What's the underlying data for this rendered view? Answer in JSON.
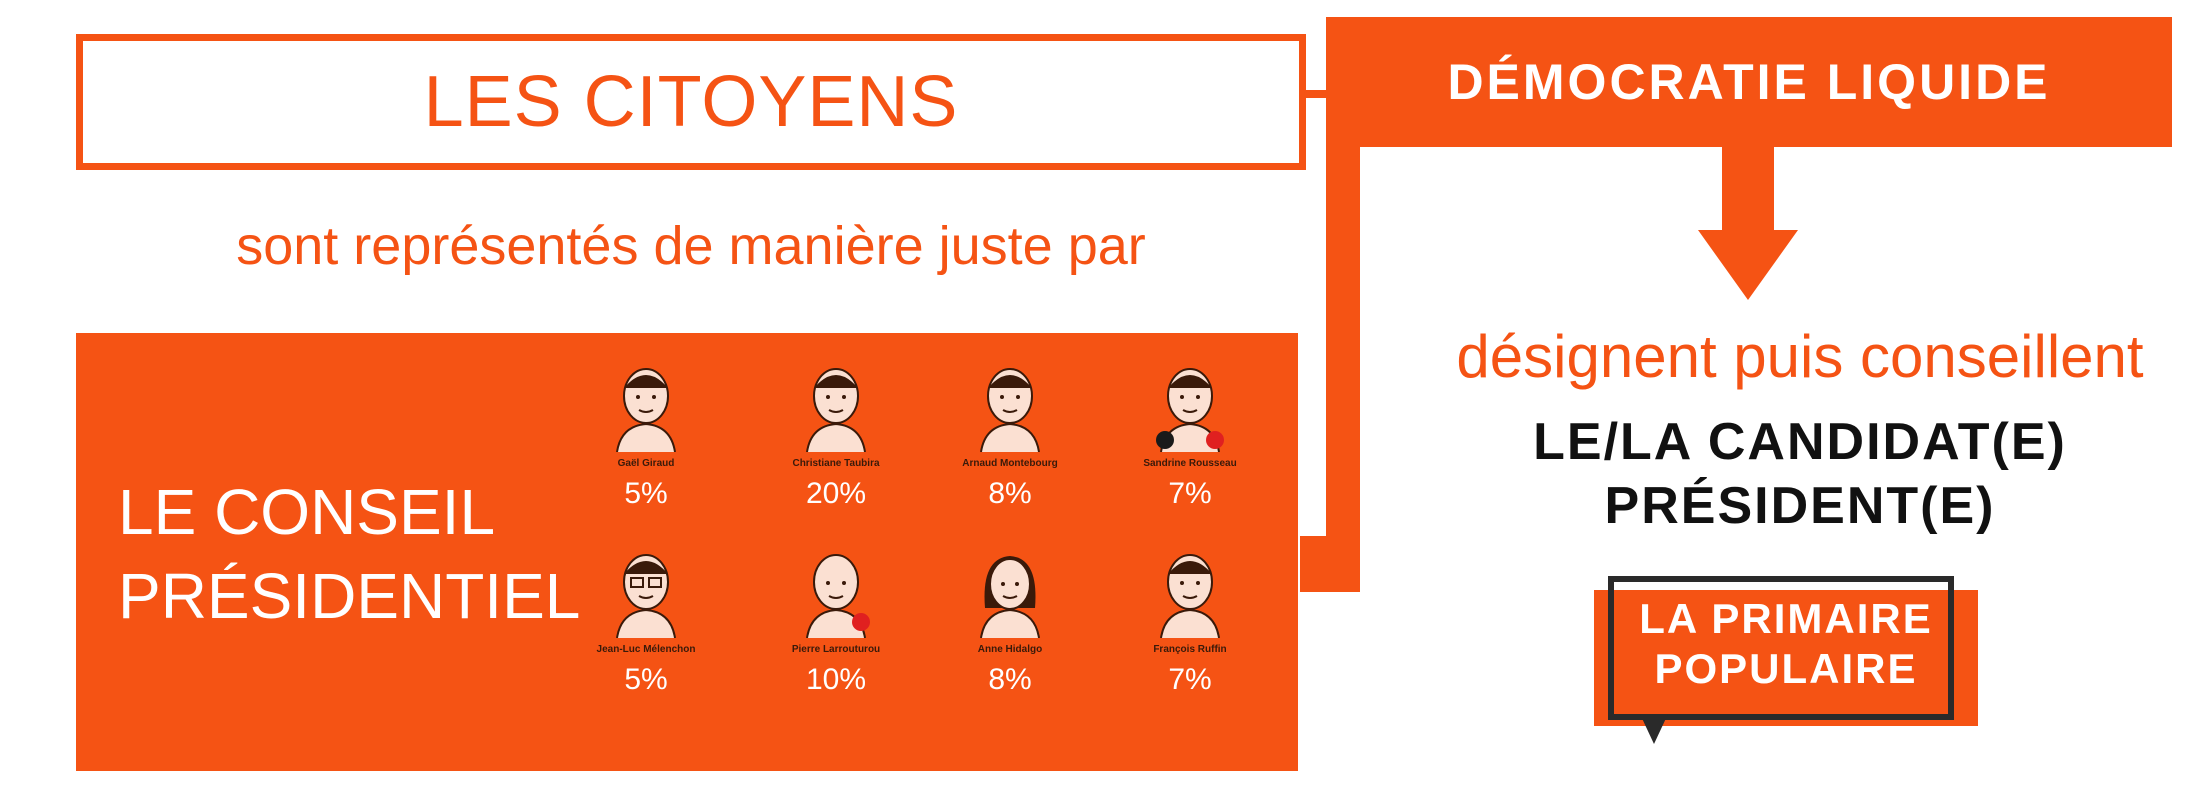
{
  "citizens": {
    "title": "LES CITOYENS"
  },
  "subtitle": "sont représentés de manière juste par",
  "header": {
    "title": "DÉMOCRATIE LIQUIDE"
  },
  "council": {
    "title_line1": "LE CONSEIL",
    "title_line2": "PRÉSIDENTIEL",
    "members": [
      {
        "name": "Gaël Giraud",
        "pct": "5%"
      },
      {
        "name": "Christiane Taubira",
        "pct": "20%"
      },
      {
        "name": "Arnaud Montebourg",
        "pct": "8%"
      },
      {
        "name": "Sandrine Rousseau",
        "pct": "7%"
      },
      {
        "name": "Jean-Luc Mélenchon",
        "pct": "5%"
      },
      {
        "name": "Pierre Larrouturou",
        "pct": "10%"
      },
      {
        "name": "Anne Hidalgo",
        "pct": "8%"
      },
      {
        "name": "François Ruffin",
        "pct": "7%"
      }
    ]
  },
  "designate": "désignent puis conseillent",
  "candidate": {
    "line1": "LE/LA CANDIDAT(E)",
    "line2": "PRÉSIDENT(E)"
  },
  "badge": {
    "line1": "LA PRIMAIRE",
    "line2": "POPULAIRE"
  },
  "colors": {
    "accent": "#f55314",
    "dark": "#111111"
  }
}
